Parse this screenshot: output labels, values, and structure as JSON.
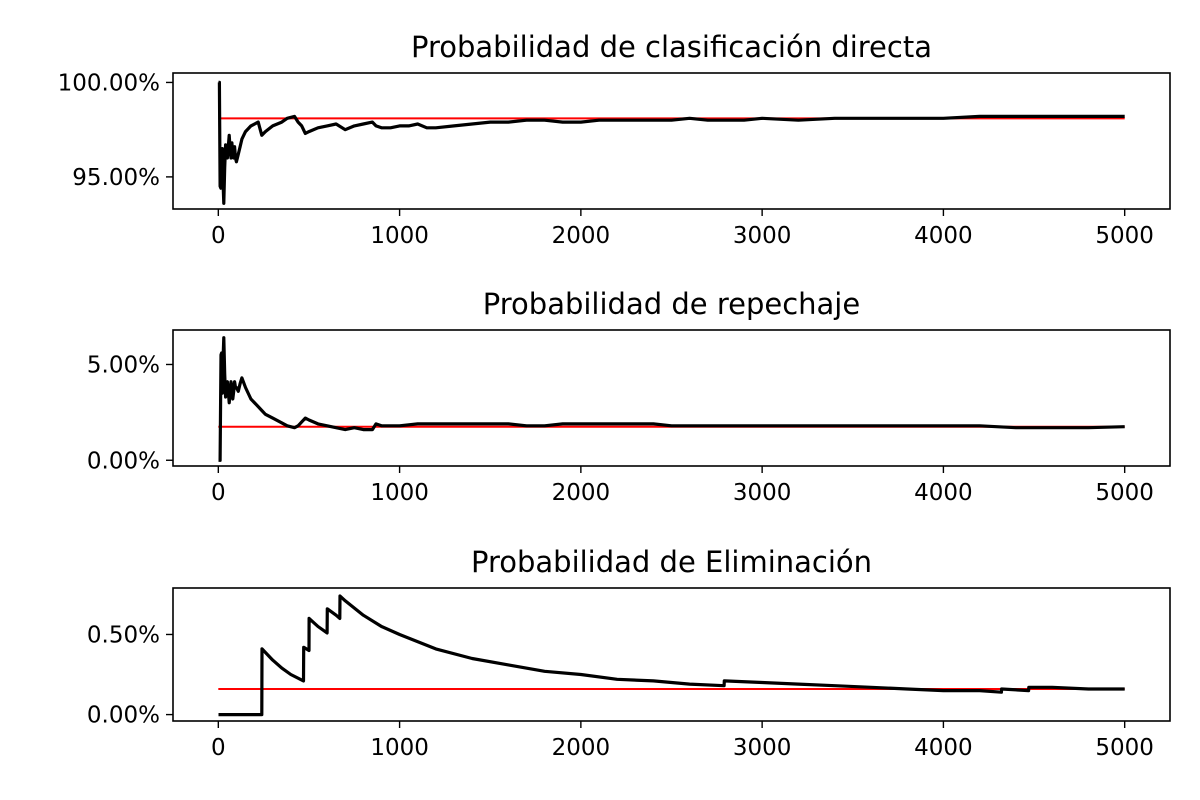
{
  "chart_data": [
    {
      "type": "line",
      "title": "Probabilidad de clasificación directa",
      "xlim": [
        -250,
        5250
      ],
      "ylim": [
        0.933,
        1.005
      ],
      "xticks": [
        0,
        1000,
        2000,
        3000,
        4000,
        5000
      ],
      "xtick_labels": [
        "0",
        "1000",
        "2000",
        "3000",
        "4000",
        "5000"
      ],
      "yticks": [
        0.95,
        1.0
      ],
      "ytick_labels": [
        "95.00%",
        "100.00%"
      ],
      "reference": {
        "color": "#ff0000",
        "value": 0.981,
        "x": [
          0,
          5000
        ]
      },
      "series": [
        {
          "color": "#000000",
          "x": [
            1,
            6,
            10,
            14,
            18,
            22,
            26,
            30,
            35,
            40,
            45,
            50,
            55,
            60,
            65,
            70,
            75,
            80,
            85,
            90,
            95,
            100,
            110,
            120,
            130,
            150,
            180,
            220,
            240,
            260,
            300,
            350,
            380,
            420,
            440,
            460,
            480,
            500,
            550,
            600,
            650,
            700,
            750,
            800,
            850,
            870,
            900,
            950,
            1000,
            1050,
            1100,
            1150,
            1200,
            1300,
            1400,
            1500,
            1600,
            1700,
            1800,
            1900,
            2000,
            2100,
            2200,
            2300,
            2400,
            2500,
            2600,
            2700,
            2800,
            2900,
            3000,
            3200,
            3400,
            3600,
            3800,
            4000,
            4200,
            4400,
            4600,
            4800,
            5000
          ],
          "y": [
            1.0,
            1.0,
            0.945,
            0.944,
            0.955,
            0.965,
            0.948,
            0.936,
            0.955,
            0.967,
            0.962,
            0.96,
            0.966,
            0.972,
            0.965,
            0.96,
            0.968,
            0.962,
            0.96,
            0.966,
            0.96,
            0.958,
            0.962,
            0.966,
            0.97,
            0.974,
            0.977,
            0.979,
            0.972,
            0.974,
            0.977,
            0.979,
            0.981,
            0.982,
            0.979,
            0.977,
            0.973,
            0.974,
            0.976,
            0.977,
            0.978,
            0.975,
            0.977,
            0.978,
            0.979,
            0.977,
            0.976,
            0.976,
            0.977,
            0.977,
            0.978,
            0.976,
            0.976,
            0.977,
            0.978,
            0.979,
            0.979,
            0.98,
            0.98,
            0.979,
            0.979,
            0.98,
            0.98,
            0.98,
            0.98,
            0.98,
            0.981,
            0.98,
            0.98,
            0.98,
            0.981,
            0.98,
            0.981,
            0.981,
            0.981,
            0.981,
            0.982,
            0.982,
            0.982,
            0.982,
            0.982
          ]
        }
      ]
    },
    {
      "type": "line",
      "title": "Probabilidad de repechaje",
      "xlim": [
        -250,
        5250
      ],
      "ylim": [
        -0.003,
        0.068
      ],
      "xticks": [
        0,
        1000,
        2000,
        3000,
        4000,
        5000
      ],
      "xtick_labels": [
        "0",
        "1000",
        "2000",
        "3000",
        "4000",
        "5000"
      ],
      "yticks": [
        0.0,
        0.05
      ],
      "ytick_labels": [
        "0.00%",
        "5.00%"
      ],
      "reference": {
        "color": "#ff0000",
        "value": 0.0175,
        "x": [
          0,
          5000
        ]
      },
      "series": [
        {
          "color": "#000000",
          "x": [
            1,
            10,
            15,
            18,
            22,
            26,
            30,
            35,
            40,
            45,
            50,
            55,
            60,
            65,
            70,
            75,
            80,
            85,
            90,
            95,
            100,
            110,
            120,
            130,
            150,
            180,
            220,
            240,
            260,
            300,
            340,
            380,
            420,
            440,
            460,
            480,
            500,
            550,
            600,
            650,
            700,
            750,
            800,
            850,
            870,
            900,
            950,
            1000,
            1100,
            1200,
            1300,
            1400,
            1500,
            1600,
            1700,
            1800,
            1900,
            2000,
            2100,
            2200,
            2300,
            2400,
            2500,
            2600,
            2700,
            2800,
            2900,
            3000,
            3200,
            3400,
            3600,
            3800,
            4000,
            4200,
            4400,
            4600,
            4800,
            5000
          ],
          "y": [
            0.0,
            0.0,
            0.055,
            0.056,
            0.035,
            0.052,
            0.064,
            0.045,
            0.033,
            0.038,
            0.041,
            0.036,
            0.03,
            0.035,
            0.041,
            0.038,
            0.032,
            0.036,
            0.041,
            0.038,
            0.038,
            0.036,
            0.04,
            0.043,
            0.038,
            0.032,
            0.028,
            0.026,
            0.024,
            0.022,
            0.02,
            0.018,
            0.017,
            0.018,
            0.02,
            0.022,
            0.021,
            0.019,
            0.018,
            0.017,
            0.016,
            0.017,
            0.016,
            0.016,
            0.019,
            0.018,
            0.018,
            0.018,
            0.019,
            0.019,
            0.019,
            0.019,
            0.019,
            0.019,
            0.018,
            0.018,
            0.019,
            0.019,
            0.019,
            0.019,
            0.019,
            0.019,
            0.018,
            0.018,
            0.018,
            0.018,
            0.018,
            0.018,
            0.018,
            0.018,
            0.018,
            0.018,
            0.018,
            0.018,
            0.017,
            0.017,
            0.017,
            0.0175
          ]
        }
      ]
    },
    {
      "type": "line",
      "title": "Probabilidad de Eliminación",
      "xlim": [
        -250,
        5250
      ],
      "ylim": [
        -0.0004,
        0.0079
      ],
      "xticks": [
        0,
        1000,
        2000,
        3000,
        4000,
        5000
      ],
      "xtick_labels": [
        "0",
        "1000",
        "2000",
        "3000",
        "4000",
        "5000"
      ],
      "yticks": [
        0.0,
        0.005
      ],
      "ytick_labels": [
        "0.00%",
        "0.50%"
      ],
      "reference": {
        "color": "#ff0000",
        "value": 0.0016,
        "x": [
          0,
          5000
        ]
      },
      "series": [
        {
          "color": "#000000",
          "x": [
            1,
            100,
            200,
            240,
            241,
            300,
            350,
            400,
            470,
            471,
            500,
            501,
            550,
            600,
            601,
            650,
            670,
            671,
            700,
            800,
            900,
            1000,
            1200,
            1400,
            1600,
            1800,
            2000,
            2200,
            2400,
            2600,
            2790,
            2791,
            3000,
            3200,
            3400,
            3600,
            3800,
            4000,
            4200,
            4320,
            4321,
            4470,
            4471,
            4600,
            4800,
            5000
          ],
          "y": [
            0.0,
            0.0,
            0.0,
            0.0,
            0.0041,
            0.0034,
            0.0029,
            0.0025,
            0.0021,
            0.0042,
            0.004,
            0.006,
            0.0055,
            0.0051,
            0.0066,
            0.0062,
            0.006,
            0.0074,
            0.0071,
            0.0062,
            0.0055,
            0.005,
            0.0041,
            0.0035,
            0.0031,
            0.0027,
            0.0025,
            0.0022,
            0.0021,
            0.0019,
            0.0018,
            0.0021,
            0.002,
            0.0019,
            0.0018,
            0.0017,
            0.0016,
            0.0015,
            0.0015,
            0.0014,
            0.0016,
            0.0015,
            0.0017,
            0.0017,
            0.0016,
            0.0016
          ]
        }
      ]
    }
  ]
}
